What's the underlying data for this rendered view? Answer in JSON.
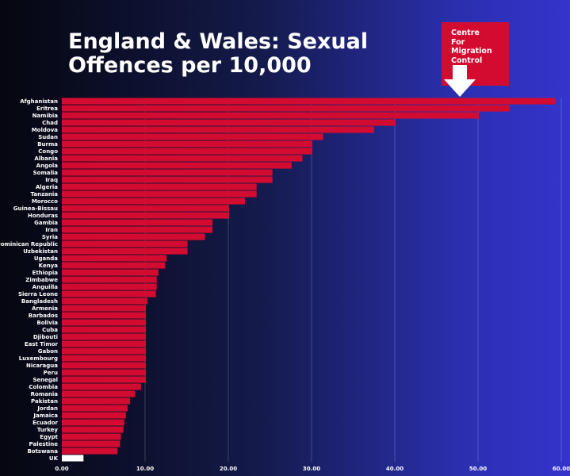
{
  "header": {
    "title_line1": "England & Wales: Sexual",
    "title_line2": "Offences per 10,000"
  },
  "logo": {
    "line1": "Centre",
    "line2": "For",
    "line3": "Migration",
    "line4": "Control",
    "color": "#d40b31",
    "arrow_icon": "down-arrow-icon"
  },
  "chart_data": {
    "type": "bar",
    "orientation": "horizontal",
    "title": "England & Wales: Sexual Offences per 10,000",
    "xlabel": "",
    "ylabel": "",
    "xlim": [
      0,
      60
    ],
    "xticks": [
      "0.00",
      "10.00",
      "20.00",
      "30.00",
      "40.00",
      "50.00",
      "60.00"
    ],
    "grid": true,
    "bar_color": "#d40b31",
    "highlight_color": "#ffffff",
    "highlight_category": "UK",
    "categories": [
      "Afghanistan",
      "Eritrea",
      "Namibia",
      "Chad",
      "Moldova",
      "Sudan",
      "Burma",
      "Congo",
      "Albania",
      "Angola",
      "Somalia",
      "Iraq",
      "Algeria",
      "Tanzania",
      "Morocco",
      "Guinea-Bissau",
      "Honduras",
      "Gambia",
      "Iran",
      "Syria",
      "Dominican Republic",
      "Uzbekistan",
      "Uganda",
      "Kenya",
      "Ethiopia",
      "Zimbabwe",
      "Anguilla",
      "Sierra Leone",
      "Bangladesh",
      "Armenia",
      "Barbados",
      "Bolivia",
      "Cuba",
      "Djibouti",
      "East Timor",
      "Gabon",
      "Luxembourg",
      "Nicaragua",
      "Peru",
      "Senegal",
      "Colombia",
      "Romania",
      "Pakistan",
      "Jordan",
      "Jamaica",
      "Ecuador",
      "Turkey",
      "Egypt",
      "Palestine",
      "Botswana",
      "UK"
    ],
    "values": [
      59.3,
      53.8,
      50.1,
      40.1,
      37.5,
      31.4,
      30.1,
      30.1,
      28.9,
      27.6,
      25.3,
      25.3,
      23.4,
      23.4,
      22.0,
      20.1,
      20.1,
      18.1,
      18.1,
      17.2,
      15.1,
      15.1,
      12.6,
      12.4,
      11.6,
      11.4,
      11.4,
      11.3,
      10.3,
      10.1,
      10.1,
      10.1,
      10.1,
      10.1,
      10.1,
      10.1,
      10.1,
      10.1,
      10.1,
      10.1,
      9.5,
      8.8,
      8.2,
      7.9,
      7.7,
      7.5,
      7.4,
      7.1,
      7.0,
      6.7,
      2.6
    ]
  }
}
